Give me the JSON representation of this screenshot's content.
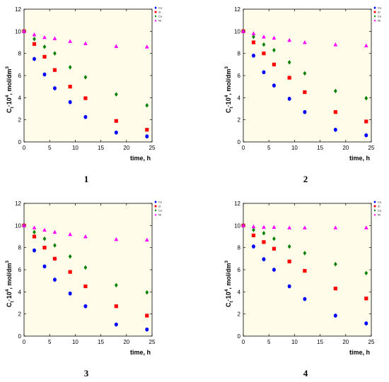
{
  "chart_data": [
    {
      "type": "scatter",
      "panel_label": "1",
      "xlabel": "time, h",
      "ylabel": "C_t·10^4, mol/dm^3",
      "xlim": [
        0,
        25
      ],
      "ylim": [
        0,
        12
      ],
      "x_ticks": [
        0,
        5,
        10,
        15,
        20,
        25
      ],
      "y_ticks": [
        0,
        2,
        4,
        6,
        8,
        10,
        12
      ],
      "grid": false,
      "legend_position": "top-right",
      "series": [
        {
          "name": "Cu",
          "color": "#0000ff",
          "marker": "circle",
          "points": [
            [
              0,
              10.0
            ],
            [
              2,
              7.5
            ],
            [
              4,
              6.1
            ],
            [
              6,
              4.85
            ],
            [
              9,
              3.6
            ],
            [
              12,
              2.25
            ],
            [
              18,
              0.85
            ],
            [
              24,
              0.5
            ]
          ]
        },
        {
          "name": "Zr",
          "color": "#ff0000",
          "marker": "square",
          "points": [
            [
              0,
              10.0
            ],
            [
              2,
              8.85
            ],
            [
              4,
              7.7
            ],
            [
              6,
              6.5
            ],
            [
              9,
              5.0
            ],
            [
              12,
              3.95
            ],
            [
              18,
              1.9
            ],
            [
              24,
              1.1
            ]
          ]
        },
        {
          "name": "Co",
          "color": "#008000",
          "marker": "diamond",
          "points": [
            [
              0,
              10.0
            ],
            [
              2,
              9.3
            ],
            [
              4,
              8.6
            ],
            [
              6,
              8.0
            ],
            [
              9,
              6.75
            ],
            [
              12,
              5.85
            ],
            [
              18,
              4.3
            ],
            [
              24,
              3.3
            ]
          ]
        },
        {
          "name": "Ni",
          "color": "#ff00ff",
          "marker": "triangle",
          "points": [
            [
              0,
              10.0
            ],
            [
              2,
              9.7
            ],
            [
              4,
              9.45
            ],
            [
              6,
              9.35
            ],
            [
              9,
              9.1
            ],
            [
              12,
              8.9
            ],
            [
              18,
              8.65
            ],
            [
              24,
              8.6
            ]
          ]
        }
      ]
    },
    {
      "type": "scatter",
      "panel_label": "2",
      "xlabel": "time, h",
      "ylabel": "C_t·10^4, mol/dm^3",
      "xlim": [
        0,
        25
      ],
      "ylim": [
        0,
        12
      ],
      "x_ticks": [
        0,
        5,
        10,
        15,
        20,
        25
      ],
      "y_ticks": [
        0,
        2,
        4,
        6,
        8,
        10,
        12
      ],
      "grid": false,
      "legend_position": "top-right",
      "series": [
        {
          "name": "Cu",
          "color": "#0000ff",
          "marker": "circle",
          "points": [
            [
              0,
              10.0
            ],
            [
              2,
              7.8
            ],
            [
              4,
              6.3
            ],
            [
              6,
              5.1
            ],
            [
              9,
              3.9
            ],
            [
              12,
              2.7
            ],
            [
              18,
              1.1
            ],
            [
              24,
              0.6
            ]
          ]
        },
        {
          "name": "Zr",
          "color": "#ff0000",
          "marker": "square",
          "points": [
            [
              0,
              10.0
            ],
            [
              2,
              9.0
            ],
            [
              4,
              8.0
            ],
            [
              6,
              7.0
            ],
            [
              9,
              5.8
            ],
            [
              12,
              4.5
            ],
            [
              18,
              2.7
            ],
            [
              24,
              1.85
            ]
          ]
        },
        {
          "name": "Co",
          "color": "#008000",
          "marker": "diamond",
          "points": [
            [
              0,
              10.0
            ],
            [
              2,
              9.5
            ],
            [
              4,
              8.8
            ],
            [
              6,
              8.3
            ],
            [
              9,
              7.2
            ],
            [
              12,
              6.2
            ],
            [
              18,
              4.6
            ],
            [
              24,
              3.95
            ]
          ]
        },
        {
          "name": "Ni",
          "color": "#ff00ff",
          "marker": "triangle",
          "points": [
            [
              0,
              10.0
            ],
            [
              2,
              9.8
            ],
            [
              4,
              9.5
            ],
            [
              6,
              9.4
            ],
            [
              9,
              9.2
            ],
            [
              12,
              9.0
            ],
            [
              18,
              8.8
            ],
            [
              24,
              8.7
            ]
          ]
        }
      ]
    },
    {
      "type": "scatter",
      "panel_label": "3",
      "xlabel": "time, h",
      "ylabel": "C_t·10^4, mol/dm^3",
      "xlim": [
        0,
        25
      ],
      "ylim": [
        0,
        12
      ],
      "x_ticks": [
        0,
        5,
        10,
        15,
        20,
        25
      ],
      "y_ticks": [
        0,
        2,
        4,
        6,
        8,
        10,
        12
      ],
      "grid": false,
      "legend_position": "top-right",
      "series": [
        {
          "name": "Cu",
          "color": "#0000ff",
          "marker": "circle",
          "points": [
            [
              0,
              10.0
            ],
            [
              2,
              7.75
            ],
            [
              4,
              6.3
            ],
            [
              6,
              5.1
            ],
            [
              9,
              3.85
            ],
            [
              12,
              2.7
            ],
            [
              18,
              1.05
            ],
            [
              24,
              0.6
            ]
          ]
        },
        {
          "name": "Zr",
          "color": "#ff0000",
          "marker": "square",
          "points": [
            [
              0,
              10.0
            ],
            [
              2,
              9.0
            ],
            [
              4,
              8.0
            ],
            [
              6,
              7.0
            ],
            [
              9,
              5.8
            ],
            [
              12,
              4.5
            ],
            [
              18,
              2.7
            ],
            [
              24,
              1.85
            ]
          ]
        },
        {
          "name": "Co",
          "color": "#008000",
          "marker": "diamond",
          "points": [
            [
              0,
              10.0
            ],
            [
              2,
              9.4
            ],
            [
              4,
              8.8
            ],
            [
              6,
              8.2
            ],
            [
              9,
              7.2
            ],
            [
              12,
              6.2
            ],
            [
              18,
              4.6
            ],
            [
              24,
              3.95
            ]
          ]
        },
        {
          "name": "Ni",
          "color": "#ff00ff",
          "marker": "triangle",
          "points": [
            [
              0,
              10.0
            ],
            [
              2,
              9.8
            ],
            [
              4,
              9.6
            ],
            [
              6,
              9.4
            ],
            [
              9,
              9.2
            ],
            [
              12,
              9.0
            ],
            [
              18,
              8.75
            ],
            [
              24,
              8.7
            ]
          ]
        }
      ]
    },
    {
      "type": "scatter",
      "panel_label": "4",
      "xlabel": "time, h",
      "ylabel": "C_t·10^4, mol/dm^3",
      "xlim": [
        0,
        25
      ],
      "ylim": [
        0,
        12
      ],
      "x_ticks": [
        0,
        5,
        10,
        15,
        20,
        25
      ],
      "y_ticks": [
        0,
        2,
        4,
        6,
        8,
        10,
        12
      ],
      "grid": false,
      "legend_position": "top-right",
      "series": [
        {
          "name": "Cu",
          "color": "#0000ff",
          "marker": "circle",
          "points": [
            [
              0,
              10.0
            ],
            [
              2,
              8.1
            ],
            [
              4,
              6.95
            ],
            [
              6,
              6.0
            ],
            [
              9,
              4.5
            ],
            [
              12,
              3.35
            ],
            [
              18,
              1.85
            ],
            [
              24,
              1.15
            ]
          ]
        },
        {
          "name": "Zr",
          "color": "#ff0000",
          "marker": "square",
          "points": [
            [
              0,
              10.0
            ],
            [
              2,
              9.1
            ],
            [
              4,
              8.5
            ],
            [
              6,
              7.9
            ],
            [
              9,
              6.75
            ],
            [
              12,
              5.9
            ],
            [
              18,
              4.3
            ],
            [
              24,
              3.4
            ]
          ]
        },
        {
          "name": "Co",
          "color": "#008000",
          "marker": "diamond",
          "points": [
            [
              0,
              10.0
            ],
            [
              2,
              9.6
            ],
            [
              4,
              9.3
            ],
            [
              6,
              8.8
            ],
            [
              9,
              8.1
            ],
            [
              12,
              7.5
            ],
            [
              18,
              6.5
            ],
            [
              24,
              5.7
            ]
          ]
        },
        {
          "name": "Ni",
          "color": "#ff00ff",
          "marker": "triangle",
          "points": [
            [
              0,
              10.0
            ],
            [
              2,
              9.9
            ],
            [
              4,
              9.85
            ],
            [
              6,
              9.85
            ],
            [
              9,
              9.8
            ],
            [
              12,
              9.8
            ],
            [
              18,
              9.8
            ],
            [
              24,
              9.8
            ]
          ]
        }
      ]
    }
  ]
}
